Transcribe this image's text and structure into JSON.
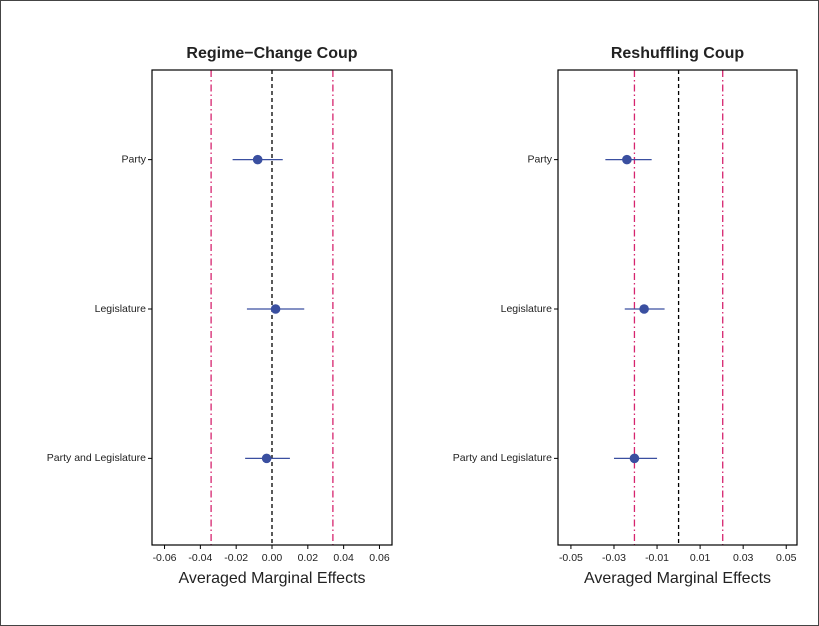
{
  "chart_data": [
    {
      "type": "coefplot",
      "title": "Regime−Change Coup",
      "xlabel": "Averaged Marginal Effects",
      "categories": [
        "Party",
        "Legislature",
        "Party and Legislature"
      ],
      "values": [
        -0.008,
        0.002,
        -0.003
      ],
      "ci_low": [
        -0.022,
        -0.014,
        -0.015
      ],
      "ci_high": [
        0.006,
        0.018,
        0.01
      ],
      "color": "#3a4fa0",
      "xlim": [
        -0.067,
        0.067
      ],
      "xticks": [
        -0.06,
        -0.04,
        -0.02,
        {
          "value": 0,
          "label": "0.00"
        },
        0.02,
        0.04,
        0.06
      ],
      "vlines": [
        {
          "value": -0.034,
          "color": "#d6246e",
          "dash": "dashdot"
        },
        {
          "value": 0,
          "color": "#000000",
          "dash": "dashed"
        },
        {
          "value": 0.034,
          "color": "#d6246e",
          "dash": "dashdot"
        }
      ]
    },
    {
      "type": "coefplot",
      "title": "Reshuffling Coup",
      "xlabel": "Averaged Marginal Effects",
      "categories": [
        "Party",
        "Legislature",
        "Party and Legislature"
      ],
      "values": [
        -0.024,
        -0.016,
        -0.0205
      ],
      "ci_low": [
        -0.034,
        -0.025,
        -0.03
      ],
      "ci_high": [
        -0.0125,
        -0.0065,
        -0.01
      ],
      "color": "#3a4fa0",
      "xlim": [
        -0.056,
        0.055
      ],
      "xticks": [
        -0.05,
        -0.03,
        -0.01,
        0.01,
        0.03,
        0.05
      ],
      "vlines": [
        {
          "value": -0.0205,
          "color": "#d6246e",
          "dash": "dashdot"
        },
        {
          "value": 0,
          "color": "#000000",
          "dash": "dashed"
        },
        {
          "value": 0.0205,
          "color": "#d6246e",
          "dash": "dashdot"
        }
      ]
    }
  ]
}
